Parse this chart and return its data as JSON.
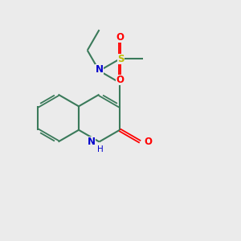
{
  "background_color": "#ebebeb",
  "bond_color": "#3a7a5a",
  "atom_colors": {
    "N": "#0000cc",
    "O": "#ff0000",
    "S": "#bbbb00",
    "C": "#3a7a5a"
  },
  "figsize": [
    3.0,
    3.0
  ],
  "dpi": 100,
  "xlim": [
    0,
    10
  ],
  "ylim": [
    0,
    10
  ]
}
